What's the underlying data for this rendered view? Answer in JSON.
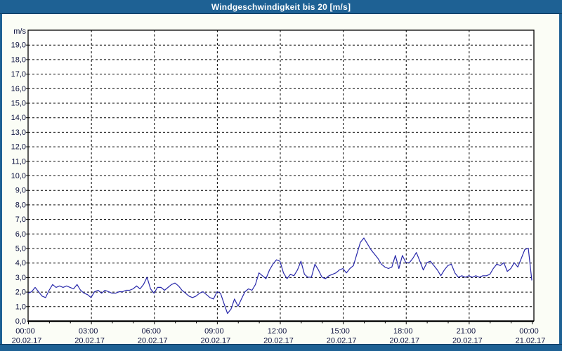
{
  "window": {
    "title": "Windgeschwindigkeit bis 20 [m/s]",
    "colors": {
      "title_bar": "#1e6194",
      "title_text": "#ffffff",
      "frame_edge": "#0f3c60",
      "panel_background": "#fbfdf6"
    }
  },
  "chart_data": {
    "type": "line",
    "title": "Windgeschwindigkeit bis 20 [m/s]",
    "ylabel": "m/s",
    "xlabel": "",
    "ylim": [
      0,
      20
    ],
    "y_tick_interval": 1,
    "y_tick_labels": [
      "0,0",
      "1,0",
      "2,0",
      "3,0",
      "4,0",
      "5,0",
      "6,0",
      "7,0",
      "8,0",
      "9,0",
      "10,0",
      "11,0",
      "12,0",
      "13,0",
      "14,0",
      "15,0",
      "16,0",
      "17,0",
      "18,0",
      "19,0"
    ],
    "x_range_hours": [
      0,
      24
    ],
    "x_major_tick_hours": 3,
    "x_minor_tick_hours": 1,
    "x_ticks": [
      {
        "time": "00:00",
        "date": "20.02.17"
      },
      {
        "time": "03:00",
        "date": "20.02.17"
      },
      {
        "time": "06:00",
        "date": "20.02.17"
      },
      {
        "time": "09:00",
        "date": "20.02.17"
      },
      {
        "time": "12:00",
        "date": "20.02.17"
      },
      {
        "time": "15:00",
        "date": "20.02.17"
      },
      {
        "time": "18:00",
        "date": "20.02.17"
      },
      {
        "time": "21:00",
        "date": "20.02.17"
      },
      {
        "time": "00:00",
        "date": "21.02.17"
      }
    ],
    "grid": "dashed",
    "legend": "none",
    "line_color": "#2828aa",
    "axis_color": "#000000",
    "axis_text_color": "#0a0f3c",
    "plot_background": "#ffffff",
    "series": [
      {
        "name": "Windgeschwindigkeit",
        "unit": "m/s",
        "interval_minutes": 10,
        "values": [
          1.9,
          2.0,
          2.3,
          2.0,
          1.7,
          1.6,
          2.1,
          2.5,
          2.3,
          2.4,
          2.3,
          2.4,
          2.3,
          2.2,
          2.5,
          2.1,
          1.9,
          1.8,
          1.6,
          2.0,
          2.1,
          1.9,
          2.1,
          2.0,
          1.9,
          1.9,
          2.0,
          2.0,
          2.1,
          2.1,
          2.2,
          2.4,
          2.2,
          2.5,
          3.0,
          2.2,
          1.9,
          2.3,
          2.3,
          2.1,
          2.3,
          2.5,
          2.6,
          2.4,
          2.1,
          1.9,
          1.7,
          1.6,
          1.7,
          1.9,
          2.0,
          1.8,
          1.6,
          1.5,
          2.0,
          1.9,
          1.2,
          0.5,
          0.8,
          1.5,
          1.0,
          1.5,
          2.0,
          2.2,
          2.1,
          2.5,
          3.3,
          3.1,
          2.9,
          3.5,
          3.9,
          4.2,
          4.1,
          3.3,
          2.9,
          3.2,
          3.1,
          3.5,
          4.1,
          3.2,
          3.0,
          3.0,
          3.9,
          3.5,
          3.0,
          2.9,
          3.1,
          3.2,
          3.3,
          3.5,
          3.6,
          3.3,
          3.6,
          3.8,
          4.6,
          5.4,
          5.7,
          5.3,
          4.9,
          4.6,
          4.3,
          3.9,
          3.7,
          3.6,
          3.7,
          4.5,
          3.6,
          4.5,
          4.0,
          4.0,
          4.3,
          4.7,
          4.1,
          3.5,
          4.0,
          4.1,
          3.8,
          3.5,
          3.1,
          3.5,
          3.8,
          3.9,
          3.3,
          3.0,
          3.1,
          3.0,
          3.1,
          3.0,
          3.1,
          3.0,
          3.1,
          3.1,
          3.2,
          3.6,
          3.9,
          3.8,
          4.0,
          3.4,
          3.6,
          4.0,
          3.7,
          4.3,
          4.9,
          5.0,
          2.8
        ]
      }
    ]
  }
}
